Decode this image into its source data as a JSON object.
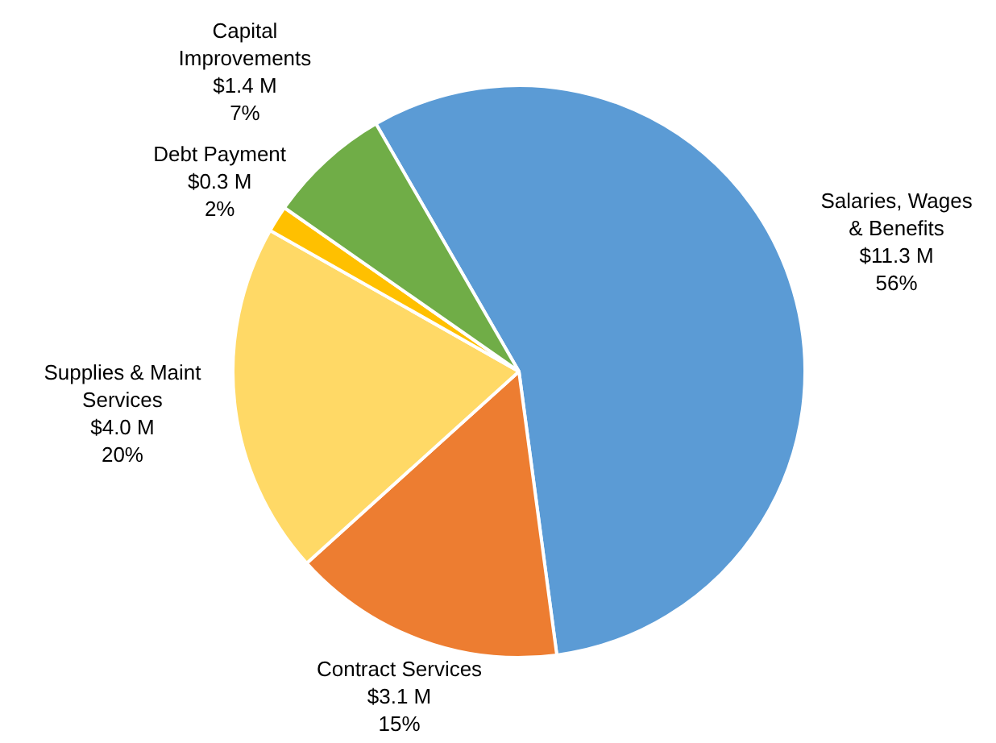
{
  "chart_data": {
    "type": "pie",
    "categories": [
      "Salaries, Wages\n& Benefits",
      "Contract Services",
      "Supplies & Maint\nServices",
      "Debt Payment",
      "Capital\nImprovements"
    ],
    "values": [
      11.3,
      3.1,
      4.0,
      0.3,
      1.4
    ],
    "colors": [
      "#5b9bd5",
      "#ed7d31",
      "#ffd966",
      "#ffc000",
      "#70ad47"
    ],
    "value_labels": [
      "$11.3 M\n56%",
      "$3.1 M\n15%",
      "$4.0 M\n20%",
      "$0.3 M\n2%",
      "$1.4 M\n7%"
    ],
    "legend": false
  }
}
